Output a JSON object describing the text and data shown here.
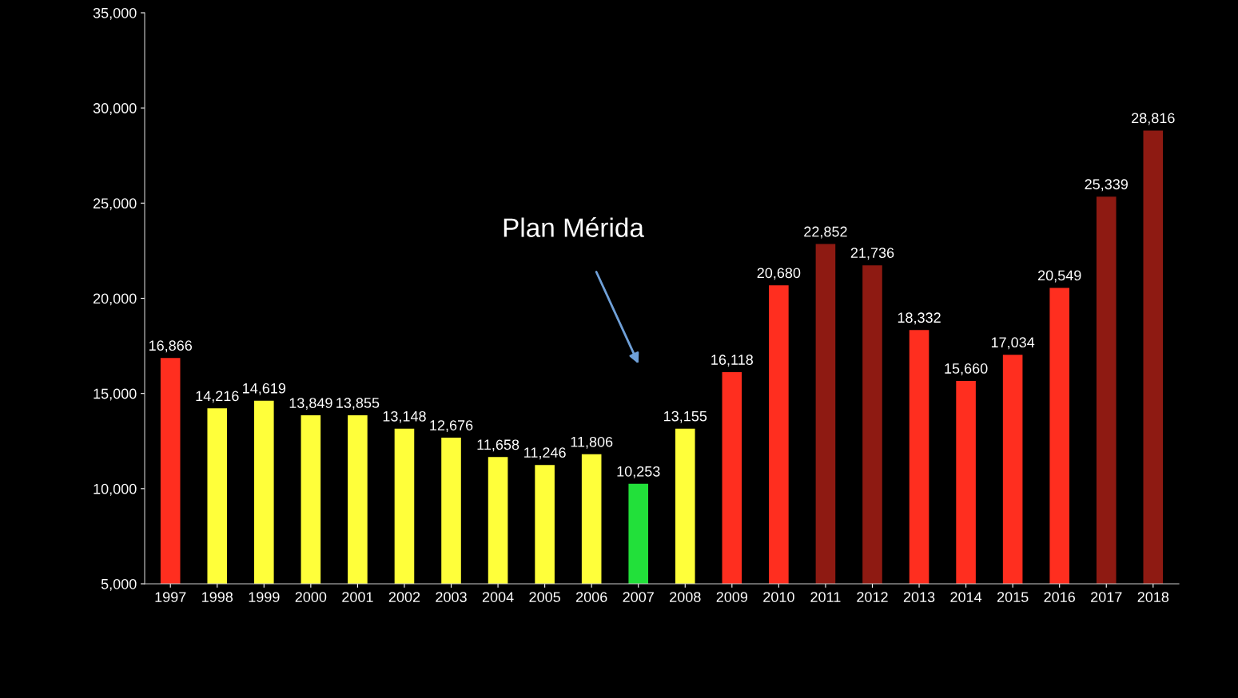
{
  "chart_data": {
    "type": "bar",
    "categories": [
      "1997",
      "1998",
      "1999",
      "2000",
      "2001",
      "2002",
      "2003",
      "2004",
      "2005",
      "2006",
      "2007",
      "2008",
      "2009",
      "2010",
      "2011",
      "2012",
      "2013",
      "2014",
      "2015",
      "2016",
      "2017",
      "2018"
    ],
    "values": [
      16866,
      14216,
      14619,
      13849,
      13855,
      13148,
      12676,
      11658,
      11246,
      11806,
      10253,
      13155,
      16118,
      20680,
      22852,
      21736,
      18332,
      15660,
      17034,
      20549,
      25339,
      28816
    ],
    "colors": [
      "#ff2e1f",
      "#ffff3a",
      "#ffff3a",
      "#ffff3a",
      "#ffff3a",
      "#ffff3a",
      "#ffff3a",
      "#ffff3a",
      "#ffff3a",
      "#ffff3a",
      "#22e03a",
      "#ffff3a",
      "#ff2e1f",
      "#ff2e1f",
      "#8e1a12",
      "#8e1a12",
      "#ff2e1f",
      "#ff2e1f",
      "#ff2e1f",
      "#ff2e1f",
      "#8e1a12",
      "#8e1a12"
    ],
    "value_labels": [
      "16,866",
      "14,216",
      "14,619",
      "13,849",
      "13,855",
      "13,148",
      "12,676",
      "11,658",
      "11,246",
      "11,806",
      "10,253",
      "13,155",
      "16,118",
      "20,680",
      "22,852",
      "21,736",
      "18,332",
      "15,660",
      "17,034",
      "20,549",
      "25,339",
      "28,816"
    ],
    "ylim": [
      5000,
      35000
    ],
    "yticks": [
      {
        "value": 5000,
        "label": "5,000"
      },
      {
        "value": 10000,
        "label": "10,000"
      },
      {
        "value": 15000,
        "label": "15,000"
      },
      {
        "value": 20000,
        "label": "20,000"
      },
      {
        "value": 25000,
        "label": "25,000"
      },
      {
        "value": 30000,
        "label": "30,000"
      },
      {
        "value": 35000,
        "label": "35,000"
      }
    ],
    "grid": false,
    "legend": false,
    "annotations": [
      "Plan Mérida"
    ]
  }
}
